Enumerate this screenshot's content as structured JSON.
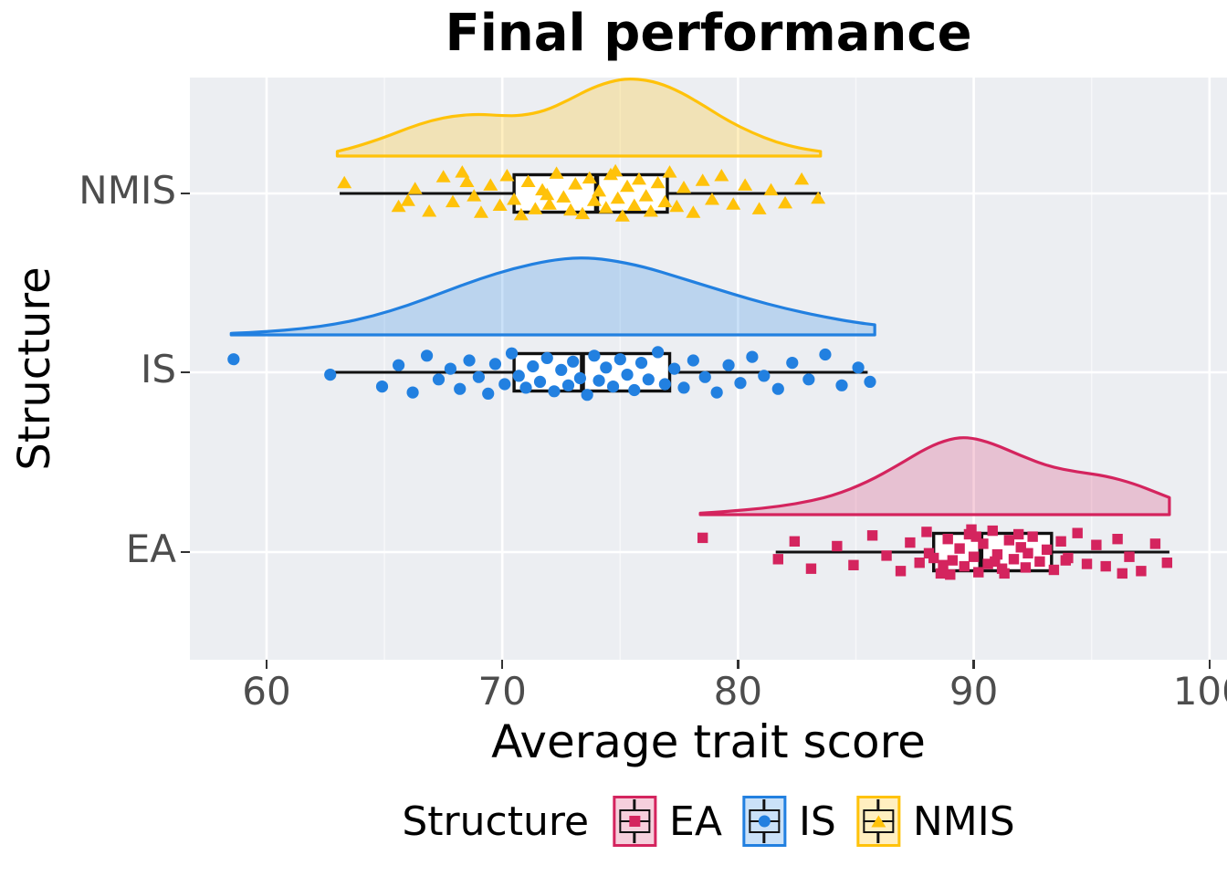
{
  "title": "Final performance",
  "x_axis": {
    "label": "Average trait score",
    "ticks": [
      60,
      70,
      80,
      90,
      100
    ]
  },
  "y_axis": {
    "label": "Structure",
    "categories": [
      "NMIS",
      "IS",
      "EA"
    ]
  },
  "legend": {
    "title": "Structure",
    "items": [
      {
        "label": "EA",
        "color": "#D4245E",
        "fill": "rgba(212,36,94,0.22)",
        "shape": "square"
      },
      {
        "label": "IS",
        "color": "#2280E0",
        "fill": "rgba(34,128,224,0.24)",
        "shape": "circle"
      },
      {
        "label": "NMIS",
        "color": "#FFC20A",
        "fill": "rgba(255,194,10,0.26)",
        "shape": "triangle"
      }
    ]
  },
  "chart_data": {
    "type": "raincloud (half-violin density + boxplot + jittered points)",
    "title": "Final performance",
    "xlabel": "Average trait score",
    "ylabel": "Structure",
    "x_range": [
      56.7,
      100.8
    ],
    "grid": {
      "major_x": [
        60,
        70,
        80,
        90,
        100
      ],
      "minor_x": [
        65,
        75,
        85,
        95
      ]
    },
    "groups": [
      {
        "name": "NMIS",
        "row": "NMIS",
        "color": "#FFC20A",
        "fill": "rgba(255,194,10,0.26)",
        "marker": "triangle",
        "box": {
          "whisker_low": 63.1,
          "q1": 70.5,
          "median": 74.0,
          "q3": 77.0,
          "whisker_high": 83.5
        },
        "density": [
          [
            63.0,
            0.06
          ],
          [
            63.8,
            0.12
          ],
          [
            65.0,
            0.24
          ],
          [
            66.0,
            0.36
          ],
          [
            67.0,
            0.46
          ],
          [
            68.0,
            0.52
          ],
          [
            69.0,
            0.54
          ],
          [
            70.0,
            0.52
          ],
          [
            70.8,
            0.52
          ],
          [
            71.8,
            0.58
          ],
          [
            72.8,
            0.72
          ],
          [
            73.8,
            0.88
          ],
          [
            74.8,
            0.98
          ],
          [
            75.6,
            1.0
          ],
          [
            76.6,
            0.95
          ],
          [
            77.6,
            0.82
          ],
          [
            78.6,
            0.64
          ],
          [
            79.6,
            0.45
          ],
          [
            80.6,
            0.3
          ],
          [
            81.6,
            0.18
          ],
          [
            82.6,
            0.1
          ],
          [
            83.5,
            0.06
          ]
        ],
        "points": [
          [
            63.3,
            -0.45
          ],
          [
            65.6,
            0.55
          ],
          [
            66.0,
            0.3
          ],
          [
            66.3,
            -0.2
          ],
          [
            66.9,
            0.75
          ],
          [
            67.5,
            -0.7
          ],
          [
            67.9,
            0.35
          ],
          [
            68.3,
            -0.9
          ],
          [
            68.5,
            -0.5
          ],
          [
            68.8,
            0.1
          ],
          [
            69.1,
            0.8
          ],
          [
            69.5,
            -0.35
          ],
          [
            69.9,
            0.5
          ],
          [
            70.2,
            -0.75
          ],
          [
            70.5,
            0.25
          ],
          [
            70.8,
            0.9
          ],
          [
            71.1,
            -0.5
          ],
          [
            71.4,
            0.65
          ],
          [
            71.7,
            -0.15
          ],
          [
            71.9,
            0.05
          ],
          [
            72.0,
            0.45
          ],
          [
            72.3,
            -0.85
          ],
          [
            72.6,
            0.15
          ],
          [
            72.9,
            0.7
          ],
          [
            73.1,
            -0.4
          ],
          [
            73.4,
            0.85
          ],
          [
            73.7,
            -0.65
          ],
          [
            73.9,
            0.3
          ],
          [
            74.1,
            -0.1
          ],
          [
            74.4,
            0.6
          ],
          [
            74.6,
            -0.8
          ],
          [
            74.8,
            -0.95
          ],
          [
            74.9,
            0.2
          ],
          [
            75.1,
            0.95
          ],
          [
            75.3,
            -0.3
          ],
          [
            75.6,
            0.5
          ],
          [
            75.8,
            -0.6
          ],
          [
            76.1,
            0.1
          ],
          [
            76.3,
            0.75
          ],
          [
            76.6,
            -0.45
          ],
          [
            76.9,
            0.35
          ],
          [
            77.1,
            -0.9
          ],
          [
            77.4,
            0.55
          ],
          [
            77.7,
            -0.25
          ],
          [
            78.1,
            0.8
          ],
          [
            78.5,
            -0.55
          ],
          [
            78.9,
            0.25
          ],
          [
            79.3,
            -0.75
          ],
          [
            79.8,
            0.45
          ],
          [
            80.3,
            -0.35
          ],
          [
            80.9,
            0.65
          ],
          [
            81.4,
            -0.15
          ],
          [
            82.0,
            0.4
          ],
          [
            82.7,
            -0.6
          ],
          [
            83.4,
            0.2
          ]
        ]
      },
      {
        "name": "IS",
        "row": "IS",
        "color": "#2280E0",
        "fill": "rgba(34,128,224,0.24)",
        "marker": "circle",
        "box": {
          "whisker_low": 62.6,
          "q1": 70.5,
          "median": 73.4,
          "q3": 77.1,
          "whisker_high": 85.5
        },
        "density": [
          [
            58.5,
            0.02
          ],
          [
            60.0,
            0.04
          ],
          [
            61.5,
            0.08
          ],
          [
            63.0,
            0.14
          ],
          [
            64.5,
            0.24
          ],
          [
            66.0,
            0.38
          ],
          [
            67.5,
            0.55
          ],
          [
            69.0,
            0.72
          ],
          [
            70.5,
            0.86
          ],
          [
            72.0,
            0.96
          ],
          [
            73.3,
            1.0
          ],
          [
            74.5,
            0.97
          ],
          [
            76.0,
            0.88
          ],
          [
            77.5,
            0.74
          ],
          [
            79.0,
            0.6
          ],
          [
            80.5,
            0.46
          ],
          [
            82.0,
            0.34
          ],
          [
            83.5,
            0.24
          ],
          [
            85.0,
            0.16
          ],
          [
            85.8,
            0.13
          ]
        ],
        "points": [
          [
            58.6,
            -0.55
          ],
          [
            62.7,
            0.1
          ],
          [
            64.9,
            0.6
          ],
          [
            65.6,
            -0.3
          ],
          [
            66.2,
            0.85
          ],
          [
            66.8,
            -0.7
          ],
          [
            67.3,
            0.3
          ],
          [
            67.8,
            -0.15
          ],
          [
            68.2,
            0.7
          ],
          [
            68.6,
            -0.5
          ],
          [
            69.0,
            0.2
          ],
          [
            69.4,
            0.9
          ],
          [
            69.7,
            -0.35
          ],
          [
            70.1,
            0.5
          ],
          [
            70.4,
            -0.8
          ],
          [
            70.7,
            0.15
          ],
          [
            71.0,
            0.65
          ],
          [
            71.3,
            -0.25
          ],
          [
            71.6,
            0.4
          ],
          [
            71.9,
            -0.6
          ],
          [
            72.2,
            0.8
          ],
          [
            72.5,
            -0.1
          ],
          [
            72.8,
            0.55
          ],
          [
            73.0,
            -0.45
          ],
          [
            73.3,
            0.25
          ],
          [
            73.6,
            0.95
          ],
          [
            73.9,
            -0.7
          ],
          [
            74.1,
            0.35
          ],
          [
            74.4,
            -0.2
          ],
          [
            74.7,
            0.6
          ],
          [
            75.0,
            -0.55
          ],
          [
            75.3,
            0.1
          ],
          [
            75.6,
            0.75
          ],
          [
            75.9,
            -0.4
          ],
          [
            76.2,
            0.3
          ],
          [
            76.6,
            -0.85
          ],
          [
            76.9,
            0.5
          ],
          [
            77.3,
            -0.15
          ],
          [
            77.7,
            0.65
          ],
          [
            78.1,
            -0.5
          ],
          [
            78.6,
            0.2
          ],
          [
            79.1,
            0.85
          ],
          [
            79.6,
            -0.3
          ],
          [
            80.1,
            0.45
          ],
          [
            80.6,
            -0.65
          ],
          [
            81.1,
            0.15
          ],
          [
            81.7,
            0.7
          ],
          [
            82.3,
            -0.4
          ],
          [
            83.0,
            0.3
          ],
          [
            83.7,
            -0.75
          ],
          [
            84.4,
            0.55
          ],
          [
            85.1,
            -0.2
          ],
          [
            85.6,
            0.4
          ]
        ]
      },
      {
        "name": "EA",
        "row": "EA",
        "color": "#D4245E",
        "fill": "rgba(212,36,94,0.22)",
        "marker": "square",
        "box": {
          "whisker_low": 81.6,
          "q1": 88.3,
          "median": 90.3,
          "q3": 93.3,
          "whisker_high": 98.3
        },
        "density": [
          [
            78.4,
            0.02
          ],
          [
            79.5,
            0.04
          ],
          [
            81.0,
            0.08
          ],
          [
            82.5,
            0.14
          ],
          [
            84.0,
            0.24
          ],
          [
            85.5,
            0.42
          ],
          [
            86.8,
            0.64
          ],
          [
            88.0,
            0.86
          ],
          [
            89.0,
            0.98
          ],
          [
            89.8,
            1.0
          ],
          [
            90.8,
            0.92
          ],
          [
            92.0,
            0.76
          ],
          [
            93.2,
            0.62
          ],
          [
            94.4,
            0.55
          ],
          [
            95.6,
            0.5
          ],
          [
            96.8,
            0.4
          ],
          [
            97.8,
            0.28
          ],
          [
            98.3,
            0.22
          ]
        ],
        "points": [
          [
            78.5,
            -0.6
          ],
          [
            81.7,
            0.3
          ],
          [
            82.4,
            -0.45
          ],
          [
            83.1,
            0.7
          ],
          [
            84.2,
            -0.25
          ],
          [
            84.9,
            0.55
          ],
          [
            85.7,
            -0.7
          ],
          [
            86.3,
            0.15
          ],
          [
            86.9,
            0.8
          ],
          [
            87.3,
            -0.4
          ],
          [
            87.7,
            0.45
          ],
          [
            88.0,
            -0.85
          ],
          [
            88.1,
            0.05
          ],
          [
            88.3,
            0.25
          ],
          [
            88.6,
            0.9
          ],
          [
            88.7,
            0.55
          ],
          [
            88.9,
            -0.55
          ],
          [
            89.0,
            0.95
          ],
          [
            89.1,
            0.35
          ],
          [
            89.4,
            -0.15
          ],
          [
            89.6,
            0.6
          ],
          [
            89.8,
            -0.75
          ],
          [
            89.9,
            -0.95
          ],
          [
            90.0,
            0.2
          ],
          [
            90.1,
            -0.65
          ],
          [
            90.2,
            0.85
          ],
          [
            90.4,
            -0.35
          ],
          [
            90.6,
            0.5
          ],
          [
            90.8,
            -0.9
          ],
          [
            90.9,
            0.4
          ],
          [
            91.0,
            0.1
          ],
          [
            91.2,
            0.7
          ],
          [
            91.3,
            0.9
          ],
          [
            91.5,
            -0.5
          ],
          [
            91.7,
            0.3
          ],
          [
            91.9,
            -0.75
          ],
          [
            92.0,
            -0.2
          ],
          [
            92.2,
            0.65
          ],
          [
            92.3,
            0.05
          ],
          [
            92.5,
            -0.65
          ],
          [
            92.8,
            0.4
          ],
          [
            93.1,
            -0.1
          ],
          [
            93.4,
            0.75
          ],
          [
            93.7,
            -0.45
          ],
          [
            93.9,
            0.35
          ],
          [
            94.0,
            0.25
          ],
          [
            94.4,
            -0.8
          ],
          [
            94.8,
            0.5
          ],
          [
            95.2,
            -0.3
          ],
          [
            95.6,
            0.6
          ],
          [
            96.1,
            -0.55
          ],
          [
            96.3,
            0.9
          ],
          [
            96.6,
            0.2
          ],
          [
            97.1,
            0.8
          ],
          [
            97.7,
            -0.35
          ],
          [
            98.2,
            0.45
          ]
        ]
      }
    ]
  }
}
